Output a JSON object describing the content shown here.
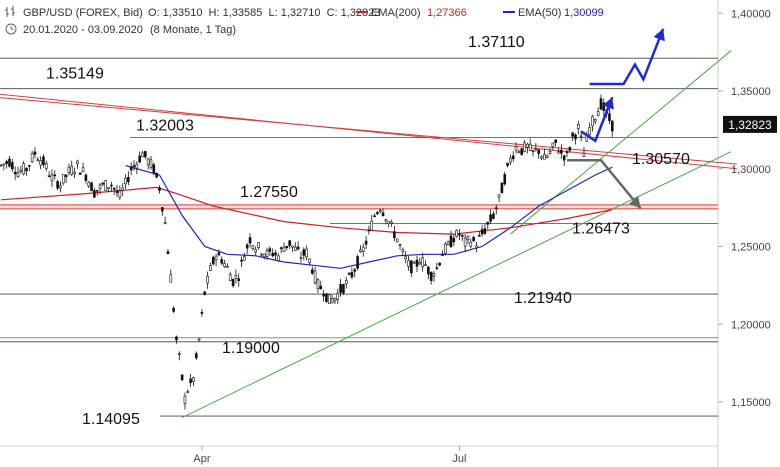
{
  "header": {
    "symbol": "GBP/USD (FOREX, Bid)",
    "ohlc": "O: 1,33510  H: 1,33585  L: 1,32710  C: 1,32823",
    "ema200_label": "EMA(200)",
    "ema200_value": "1,27366",
    "ema50_label": "EMA(50)",
    "ema50_value": "1,30099",
    "range": "20.01.2020 - 03.09.2020",
    "period": "(8 Monate, 1 Tag)"
  },
  "colors": {
    "candle": "#111111",
    "ema200": "#cc2222",
    "ema50": "#2222cc",
    "trendline": "#44aa44",
    "resistance": "#d04040",
    "projection_up": "#1a2ad8",
    "projection_down": "#666666",
    "last_price_bg": "#111111"
  },
  "chart_data": {
    "type": "candlestick",
    "instrument": "GBP/USD",
    "ylim": [
      1.13,
      1.41
    ],
    "y_ticks": [
      "1,40000",
      "1,35000",
      "1,30000",
      "1,25000",
      "1,20000",
      "1,15000"
    ],
    "y_tick_values": [
      1.4,
      1.35,
      1.3,
      1.25,
      1.2,
      1.15
    ],
    "x_ticks": [
      "Apr",
      "Jul"
    ],
    "x_tick_days": [
      71,
      162
    ],
    "last_price": "1,32823",
    "last_price_value": 1.32823,
    "levels": [
      {
        "label": "1.37110",
        "value": 1.3711
      },
      {
        "label": "1.35149",
        "value": 1.35149
      },
      {
        "label": "1.32003",
        "value": 1.32003
      },
      {
        "label": "1.30570",
        "value": 1.3057
      },
      {
        "label": "1.27550",
        "value": 1.2755
      },
      {
        "label": "1.26473",
        "value": 1.26473
      },
      {
        "label": "1.21940",
        "value": 1.2194
      },
      {
        "label": "1.19000",
        "value": 1.19
      },
      {
        "label": "1.14095",
        "value": 1.14095
      }
    ],
    "close_series": [
      {
        "d": 0,
        "v": 1.302
      },
      {
        "d": 3,
        "v": 1.305
      },
      {
        "d": 6,
        "v": 1.298
      },
      {
        "d": 9,
        "v": 1.3
      },
      {
        "d": 12,
        "v": 1.31
      },
      {
        "d": 15,
        "v": 1.304
      },
      {
        "d": 18,
        "v": 1.294
      },
      {
        "d": 21,
        "v": 1.29
      },
      {
        "d": 24,
        "v": 1.298
      },
      {
        "d": 27,
        "v": 1.302
      },
      {
        "d": 30,
        "v": 1.296
      },
      {
        "d": 33,
        "v": 1.285
      },
      {
        "d": 36,
        "v": 1.289
      },
      {
        "d": 39,
        "v": 1.29
      },
      {
        "d": 42,
        "v": 1.282
      },
      {
        "d": 44,
        "v": 1.29
      },
      {
        "d": 46,
        "v": 1.3
      },
      {
        "d": 48,
        "v": 1.304
      },
      {
        "d": 50,
        "v": 1.31
      },
      {
        "d": 52,
        "v": 1.305
      },
      {
        "d": 54,
        "v": 1.3
      },
      {
        "d": 56,
        "v": 1.288
      },
      {
        "d": 58,
        "v": 1.265
      },
      {
        "d": 60,
        "v": 1.23
      },
      {
        "d": 62,
        "v": 1.19
      },
      {
        "d": 64,
        "v": 1.165
      },
      {
        "d": 65,
        "v": 1.152
      },
      {
        "d": 66,
        "v": 1.158
      },
      {
        "d": 68,
        "v": 1.165
      },
      {
        "d": 70,
        "v": 1.19
      },
      {
        "d": 72,
        "v": 1.22
      },
      {
        "d": 74,
        "v": 1.235
      },
      {
        "d": 76,
        "v": 1.245
      },
      {
        "d": 78,
        "v": 1.242
      },
      {
        "d": 80,
        "v": 1.236
      },
      {
        "d": 82,
        "v": 1.228
      },
      {
        "d": 84,
        "v": 1.232
      },
      {
        "d": 86,
        "v": 1.245
      },
      {
        "d": 88,
        "v": 1.255
      },
      {
        "d": 90,
        "v": 1.25
      },
      {
        "d": 92,
        "v": 1.248
      },
      {
        "d": 94,
        "v": 1.245
      },
      {
        "d": 96,
        "v": 1.246
      },
      {
        "d": 98,
        "v": 1.244
      },
      {
        "d": 100,
        "v": 1.25
      },
      {
        "d": 102,
        "v": 1.252
      },
      {
        "d": 104,
        "v": 1.248
      },
      {
        "d": 106,
        "v": 1.244
      },
      {
        "d": 108,
        "v": 1.246
      },
      {
        "d": 110,
        "v": 1.236
      },
      {
        "d": 112,
        "v": 1.225
      },
      {
        "d": 114,
        "v": 1.222
      },
      {
        "d": 116,
        "v": 1.215
      },
      {
        "d": 118,
        "v": 1.217
      },
      {
        "d": 120,
        "v": 1.222
      },
      {
        "d": 122,
        "v": 1.226
      },
      {
        "d": 124,
        "v": 1.232
      },
      {
        "d": 126,
        "v": 1.24
      },
      {
        "d": 128,
        "v": 1.248
      },
      {
        "d": 130,
        "v": 1.258
      },
      {
        "d": 132,
        "v": 1.27
      },
      {
        "d": 134,
        "v": 1.276
      },
      {
        "d": 136,
        "v": 1.27
      },
      {
        "d": 138,
        "v": 1.262
      },
      {
        "d": 140,
        "v": 1.255
      },
      {
        "d": 142,
        "v": 1.245
      },
      {
        "d": 144,
        "v": 1.238
      },
      {
        "d": 146,
        "v": 1.236
      },
      {
        "d": 148,
        "v": 1.242
      },
      {
        "d": 150,
        "v": 1.238
      },
      {
        "d": 152,
        "v": 1.232
      },
      {
        "d": 154,
        "v": 1.236
      },
      {
        "d": 156,
        "v": 1.246
      },
      {
        "d": 158,
        "v": 1.25
      },
      {
        "d": 160,
        "v": 1.256
      },
      {
        "d": 162,
        "v": 1.258
      },
      {
        "d": 164,
        "v": 1.252
      },
      {
        "d": 166,
        "v": 1.254
      },
      {
        "d": 168,
        "v": 1.252
      },
      {
        "d": 170,
        "v": 1.258
      },
      {
        "d": 172,
        "v": 1.264
      },
      {
        "d": 174,
        "v": 1.27
      },
      {
        "d": 176,
        "v": 1.28
      },
      {
        "d": 178,
        "v": 1.294
      },
      {
        "d": 180,
        "v": 1.306
      },
      {
        "d": 182,
        "v": 1.314
      },
      {
        "d": 184,
        "v": 1.312
      },
      {
        "d": 186,
        "v": 1.314
      },
      {
        "d": 188,
        "v": 1.31
      },
      {
        "d": 190,
        "v": 1.312
      },
      {
        "d": 192,
        "v": 1.306
      },
      {
        "d": 194,
        "v": 1.31
      },
      {
        "d": 196,
        "v": 1.316
      },
      {
        "d": 198,
        "v": 1.31
      },
      {
        "d": 200,
        "v": 1.308
      },
      {
        "d": 202,
        "v": 1.32
      },
      {
        "d": 204,
        "v": 1.326
      },
      {
        "d": 206,
        "v": 1.31
      },
      {
        "d": 208,
        "v": 1.326
      },
      {
        "d": 210,
        "v": 1.334
      },
      {
        "d": 212,
        "v": 1.342
      },
      {
        "d": 214,
        "v": 1.335
      },
      {
        "d": 216,
        "v": 1.328
      }
    ],
    "ema200": [
      {
        "d": 0,
        "v": 1.28
      },
      {
        "d": 30,
        "v": 1.284
      },
      {
        "d": 55,
        "v": 1.288
      },
      {
        "d": 62,
        "v": 1.284
      },
      {
        "d": 75,
        "v": 1.276
      },
      {
        "d": 100,
        "v": 1.266
      },
      {
        "d": 120,
        "v": 1.262
      },
      {
        "d": 140,
        "v": 1.259
      },
      {
        "d": 160,
        "v": 1.258
      },
      {
        "d": 180,
        "v": 1.262
      },
      {
        "d": 200,
        "v": 1.268
      },
      {
        "d": 216,
        "v": 1.2737
      }
    ],
    "ema50": [
      {
        "d": 44,
        "v": 1.302
      },
      {
        "d": 56,
        "v": 1.296
      },
      {
        "d": 64,
        "v": 1.27
      },
      {
        "d": 72,
        "v": 1.25
      },
      {
        "d": 80,
        "v": 1.245
      },
      {
        "d": 90,
        "v": 1.244
      },
      {
        "d": 100,
        "v": 1.24
      },
      {
        "d": 110,
        "v": 1.238
      },
      {
        "d": 120,
        "v": 1.236
      },
      {
        "d": 130,
        "v": 1.24
      },
      {
        "d": 140,
        "v": 1.244
      },
      {
        "d": 150,
        "v": 1.245
      },
      {
        "d": 160,
        "v": 1.245
      },
      {
        "d": 170,
        "v": 1.25
      },
      {
        "d": 180,
        "v": 1.262
      },
      {
        "d": 190,
        "v": 1.276
      },
      {
        "d": 200,
        "v": 1.286
      },
      {
        "d": 210,
        "v": 1.296
      },
      {
        "d": 216,
        "v": 1.301
      }
    ],
    "trendlines": [
      {
        "kind": "resistance",
        "p1": {
          "d": -20,
          "v": 1.3515
        },
        "p2": {
          "d": 260,
          "v": 1.3
        }
      },
      {
        "kind": "resistance",
        "p1": {
          "d": -20,
          "v": 1.349
        },
        "p2": {
          "d": 260,
          "v": 1.303
        }
      },
      {
        "kind": "support",
        "p1": {
          "d": 64,
          "v": 1.14
        },
        "p2": {
          "d": 258,
          "v": 1.311
        }
      },
      {
        "kind": "support",
        "p1": {
          "d": 180,
          "v": 1.258
        },
        "p2": {
          "d": 258,
          "v": 1.376
        }
      }
    ],
    "projections": [
      {
        "kind": "up",
        "points": [
          {
            "d": 205,
            "v": 1.324
          },
          {
            "d": 210,
            "v": 1.318
          },
          {
            "d": 216,
            "v": 1.346
          }
        ]
      },
      {
        "kind": "up",
        "points": [
          {
            "d": 208,
            "v": 1.3545
          },
          {
            "d": 220,
            "v": 1.3545
          },
          {
            "d": 224,
            "v": 1.367
          },
          {
            "d": 227,
            "v": 1.3575
          },
          {
            "d": 234,
            "v": 1.39
          }
        ]
      },
      {
        "kind": "down",
        "points": [
          {
            "d": 200,
            "v": 1.3055
          },
          {
            "d": 212,
            "v": 1.3055
          },
          {
            "d": 226,
            "v": 1.2745
          }
        ]
      }
    ]
  }
}
